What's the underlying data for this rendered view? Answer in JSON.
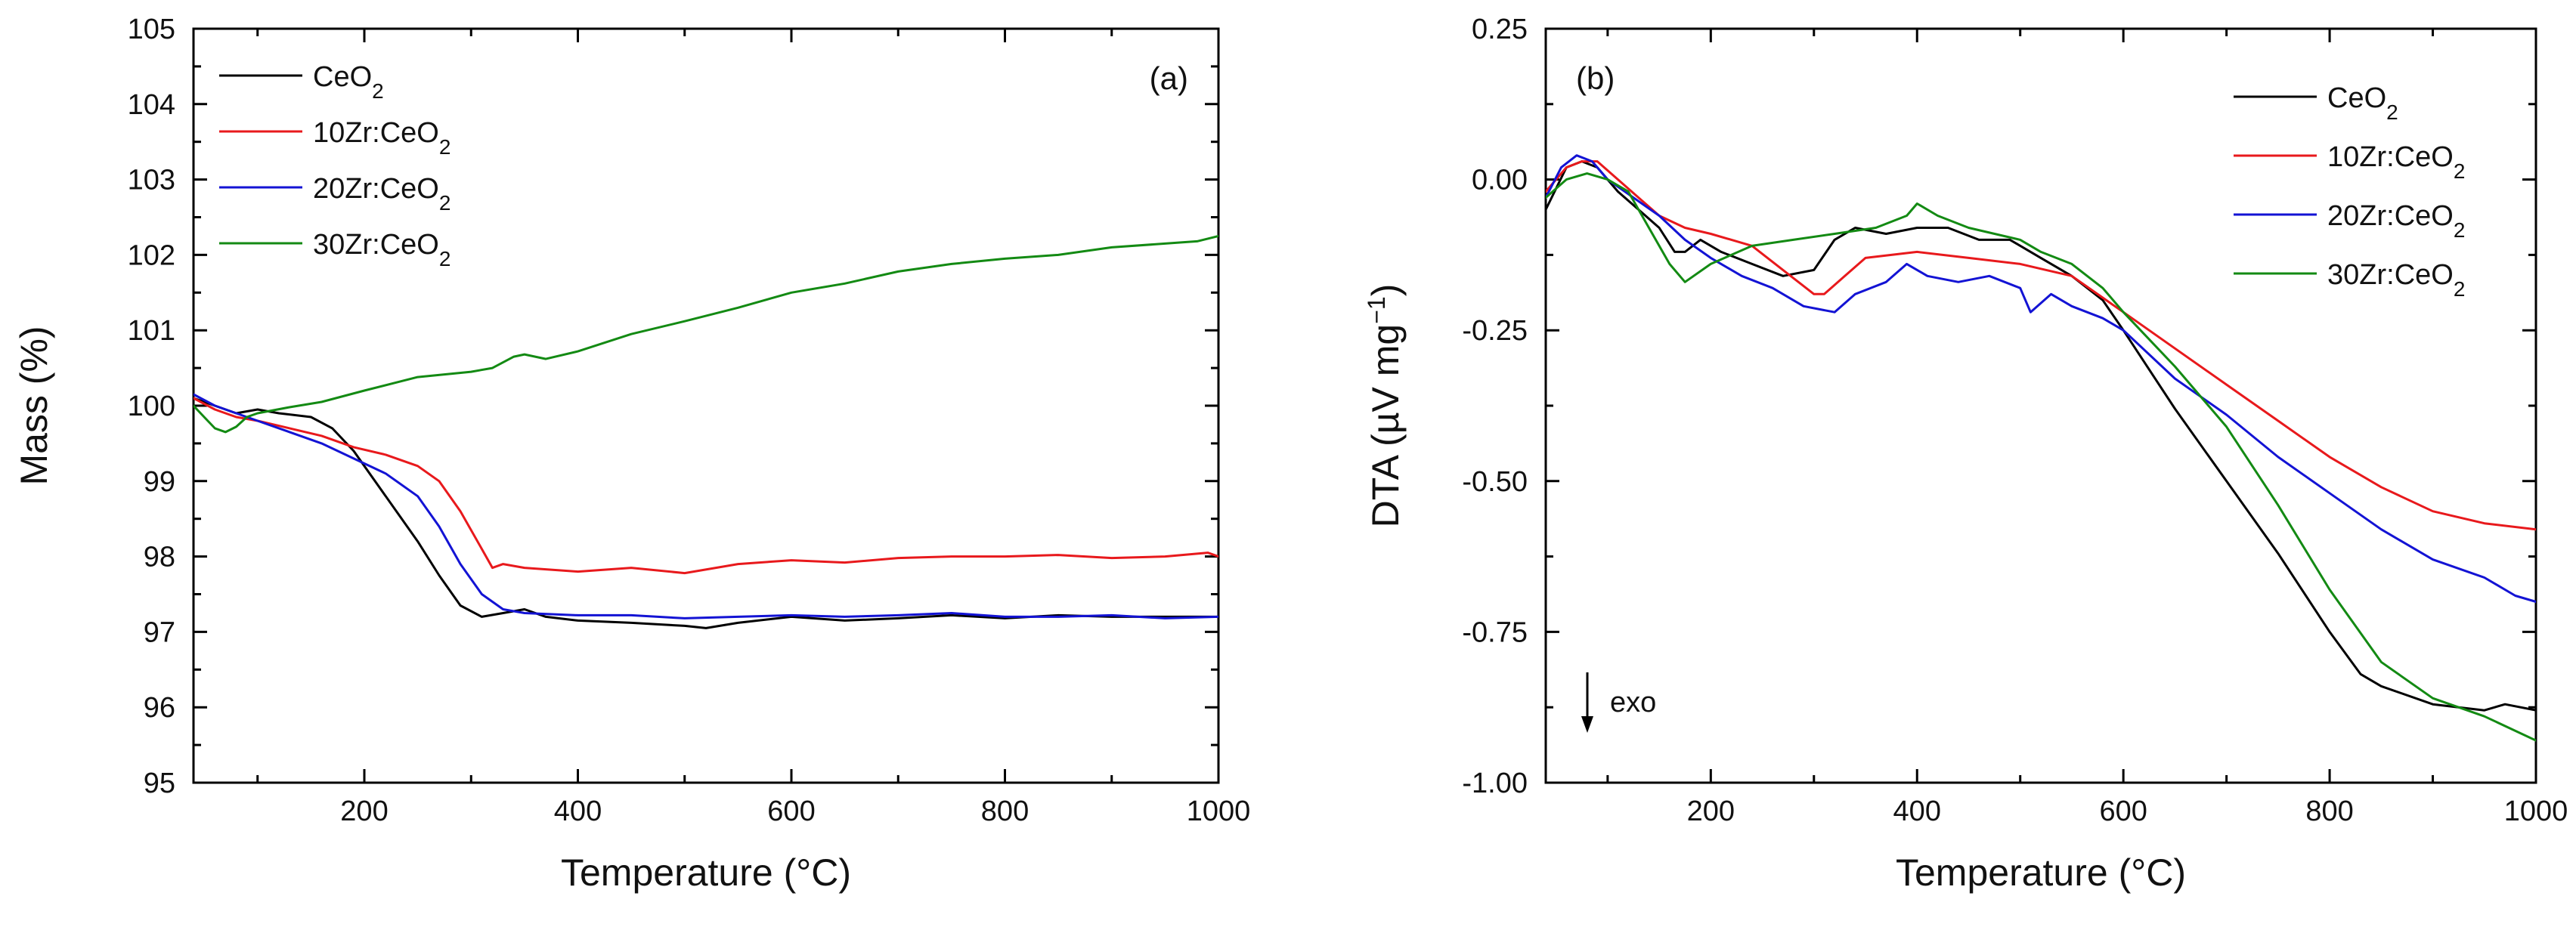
{
  "colors": {
    "CeO2": "#000000",
    "10Zr:CeO2": "#e8191c",
    "20Zr:CeO2": "#1313d4",
    "30Zr:CeO2": "#138a13"
  },
  "chart_data": [
    {
      "type": "line",
      "panel": "(a)",
      "xlabel": "Temperature (°C)",
      "ylabel": "Mass (%)",
      "xlim": [
        40,
        1000
      ],
      "ylim": [
        95,
        105
      ],
      "xticks": [
        200,
        400,
        600,
        800,
        1000
      ],
      "xtick_labels": [
        "200",
        "400",
        "600",
        "800",
        "1000"
      ],
      "yticks": [
        95,
        96,
        97,
        98,
        99,
        100,
        101,
        102,
        103,
        104,
        105
      ],
      "ytick_labels": [
        "95",
        "96",
        "97",
        "98",
        "99",
        "100",
        "101",
        "102",
        "103",
        "104",
        "105"
      ],
      "legend_position": "top-left",
      "legend": [
        {
          "base": "CeO",
          "sub": "2",
          "key": "CeO2"
        },
        {
          "base": "10Zr:CeO",
          "sub": "2",
          "key": "10Zr:CeO2"
        },
        {
          "base": "20Zr:CeO",
          "sub": "2",
          "key": "20Zr:CeO2"
        },
        {
          "base": "30Zr:CeO",
          "sub": "2",
          "key": "30Zr:CeO2"
        }
      ],
      "series": [
        {
          "name": "CeO2",
          "x": [
            40,
            60,
            80,
            100,
            120,
            150,
            170,
            190,
            210,
            230,
            250,
            270,
            290,
            310,
            330,
            350,
            370,
            400,
            450,
            500,
            520,
            550,
            600,
            650,
            700,
            750,
            800,
            850,
            900,
            950,
            1000
          ],
          "y": [
            100.1,
            100.0,
            99.9,
            99.95,
            99.9,
            99.85,
            99.7,
            99.4,
            99.0,
            98.6,
            98.2,
            97.75,
            97.35,
            97.2,
            97.25,
            97.3,
            97.2,
            97.15,
            97.12,
            97.08,
            97.05,
            97.12,
            97.2,
            97.15,
            97.18,
            97.22,
            97.18,
            97.22,
            97.2,
            97.2,
            97.2
          ]
        },
        {
          "name": "10Zr:CeO2",
          "x": [
            40,
            60,
            80,
            100,
            130,
            160,
            190,
            220,
            250,
            270,
            290,
            310,
            320,
            330,
            350,
            400,
            450,
            500,
            550,
            600,
            650,
            700,
            750,
            800,
            850,
            900,
            950,
            990,
            1000
          ],
          "y": [
            100.1,
            99.95,
            99.85,
            99.8,
            99.7,
            99.6,
            99.45,
            99.35,
            99.2,
            99.0,
            98.6,
            98.1,
            97.85,
            97.9,
            97.85,
            97.8,
            97.85,
            97.78,
            97.9,
            97.95,
            97.92,
            97.98,
            98.0,
            98.0,
            98.02,
            97.98,
            98.0,
            98.05,
            98.0
          ]
        },
        {
          "name": "20Zr:CeO2",
          "x": [
            40,
            60,
            80,
            100,
            130,
            160,
            190,
            220,
            250,
            270,
            290,
            310,
            330,
            350,
            400,
            450,
            500,
            550,
            600,
            650,
            700,
            750,
            800,
            850,
            900,
            950,
            1000
          ],
          "y": [
            100.15,
            100.0,
            99.9,
            99.8,
            99.65,
            99.5,
            99.3,
            99.1,
            98.8,
            98.4,
            97.9,
            97.5,
            97.3,
            97.25,
            97.22,
            97.22,
            97.18,
            97.2,
            97.22,
            97.2,
            97.22,
            97.25,
            97.2,
            97.2,
            97.22,
            97.18,
            97.2
          ]
        },
        {
          "name": "30Zr:CeO2",
          "x": [
            40,
            50,
            60,
            70,
            80,
            90,
            100,
            130,
            160,
            200,
            250,
            300,
            320,
            340,
            350,
            370,
            400,
            450,
            500,
            550,
            600,
            650,
            700,
            750,
            800,
            850,
            900,
            950,
            980,
            1000
          ],
          "y": [
            100.0,
            99.85,
            99.7,
            99.65,
            99.72,
            99.85,
            99.9,
            99.98,
            100.05,
            100.2,
            100.38,
            100.45,
            100.5,
            100.65,
            100.68,
            100.62,
            100.72,
            100.95,
            101.12,
            101.3,
            101.5,
            101.62,
            101.78,
            101.88,
            101.95,
            102.0,
            102.1,
            102.15,
            102.18,
            102.25
          ]
        }
      ]
    },
    {
      "type": "line",
      "panel": "(b)",
      "xlabel": "Temperature (°C)",
      "ylabel": "DTA (µV mg⁻¹)",
      "ylabel_parts": {
        "pre": "DTA (",
        "mu": "µ",
        "mid": "V mg",
        "sup": "−1",
        "post": ")"
      },
      "xlim": [
        40,
        1000
      ],
      "ylim": [
        -1.0,
        0.25
      ],
      "xticks": [
        200,
        400,
        600,
        800,
        1000
      ],
      "xtick_labels": [
        "200",
        "400",
        "600",
        "800",
        "1000"
      ],
      "yticks": [
        -1.0,
        -0.75,
        -0.5,
        -0.25,
        0.0,
        0.25
      ],
      "ytick_labels": [
        "-1.00",
        "-0.75",
        "-0.50",
        "-0.25",
        "0.00",
        "0.25"
      ],
      "annotation": "exo",
      "legend_position": "top-right",
      "legend": [
        {
          "base": "CeO",
          "sub": "2",
          "key": "CeO2"
        },
        {
          "base": "10Zr:CeO",
          "sub": "2",
          "key": "10Zr:CeO2"
        },
        {
          "base": "20Zr:CeO",
          "sub": "2",
          "key": "20Zr:CeO2"
        },
        {
          "base": "30Zr:CeO",
          "sub": "2",
          "key": "30Zr:CeO2"
        }
      ],
      "series": [
        {
          "name": "CeO2",
          "x": [
            40,
            60,
            75,
            90,
            110,
            130,
            150,
            165,
            175,
            190,
            210,
            240,
            270,
            300,
            320,
            340,
            370,
            400,
            430,
            460,
            490,
            520,
            550,
            580,
            600,
            650,
            700,
            750,
            800,
            830,
            850,
            900,
            950,
            970,
            1000
          ],
          "y": [
            -0.05,
            0.02,
            0.03,
            0.02,
            -0.02,
            -0.05,
            -0.08,
            -0.12,
            -0.12,
            -0.1,
            -0.12,
            -0.14,
            -0.16,
            -0.15,
            -0.1,
            -0.08,
            -0.09,
            -0.08,
            -0.08,
            -0.1,
            -0.1,
            -0.13,
            -0.16,
            -0.2,
            -0.25,
            -0.38,
            -0.5,
            -0.62,
            -0.75,
            -0.82,
            -0.84,
            -0.87,
            -0.88,
            -0.87,
            -0.88
          ]
        },
        {
          "name": "10Zr:CeO2",
          "x": [
            40,
            60,
            75,
            90,
            110,
            130,
            150,
            175,
            200,
            240,
            270,
            300,
            310,
            330,
            350,
            400,
            450,
            500,
            550,
            600,
            650,
            700,
            750,
            800,
            850,
            900,
            950,
            1000
          ],
          "y": [
            -0.02,
            0.02,
            0.03,
            0.03,
            0.0,
            -0.03,
            -0.06,
            -0.08,
            -0.09,
            -0.11,
            -0.15,
            -0.19,
            -0.19,
            -0.16,
            -0.13,
            -0.12,
            -0.13,
            -0.14,
            -0.16,
            -0.22,
            -0.28,
            -0.34,
            -0.4,
            -0.46,
            -0.51,
            -0.55,
            -0.57,
            -0.58
          ]
        },
        {
          "name": "20Zr:CeO2",
          "x": [
            40,
            55,
            70,
            85,
            100,
            125,
            150,
            175,
            200,
            230,
            260,
            290,
            320,
            340,
            370,
            390,
            410,
            440,
            470,
            500,
            510,
            530,
            550,
            580,
            600,
            650,
            700,
            750,
            800,
            850,
            900,
            950,
            980,
            1000
          ],
          "y": [
            -0.03,
            0.02,
            0.04,
            0.03,
            0.0,
            -0.03,
            -0.06,
            -0.1,
            -0.13,
            -0.16,
            -0.18,
            -0.21,
            -0.22,
            -0.19,
            -0.17,
            -0.14,
            -0.16,
            -0.17,
            -0.16,
            -0.18,
            -0.22,
            -0.19,
            -0.21,
            -0.23,
            -0.25,
            -0.33,
            -0.39,
            -0.46,
            -0.52,
            -0.58,
            -0.63,
            -0.66,
            -0.69,
            -0.7
          ]
        },
        {
          "name": "30Zr:CeO2",
          "x": [
            40,
            60,
            80,
            100,
            120,
            140,
            160,
            175,
            200,
            240,
            280,
            320,
            360,
            390,
            400,
            420,
            450,
            500,
            520,
            550,
            580,
            600,
            650,
            700,
            750,
            800,
            850,
            900,
            950,
            1000
          ],
          "y": [
            -0.03,
            0.0,
            0.01,
            0.0,
            -0.02,
            -0.08,
            -0.14,
            -0.17,
            -0.14,
            -0.11,
            -0.1,
            -0.09,
            -0.08,
            -0.06,
            -0.04,
            -0.06,
            -0.08,
            -0.1,
            -0.12,
            -0.14,
            -0.18,
            -0.22,
            -0.31,
            -0.41,
            -0.54,
            -0.68,
            -0.8,
            -0.86,
            -0.89,
            -0.93
          ]
        }
      ]
    }
  ]
}
